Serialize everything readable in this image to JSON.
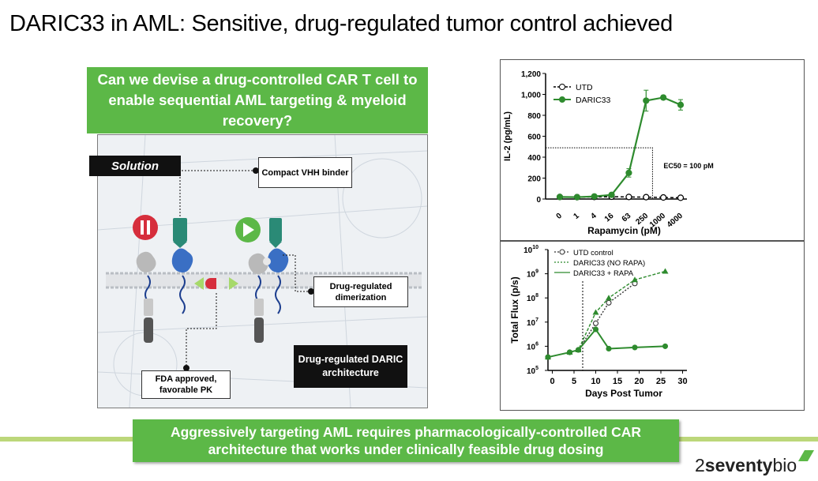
{
  "slide": {
    "title": "DARIC33 in AML: Sensitive, drug-regulated tumor control achieved",
    "question": "Can we devise a drug-controlled CAR T cell to enable sequential AML targeting & myeloid recovery?",
    "solution_label": "Solution",
    "callouts": {
      "vhh": "Compact VHH binder",
      "dimerization": "Drug-regulated dimerization",
      "fda": "FDA approved, favorable PK"
    },
    "architecture_box": "Drug-regulated DARIC architecture",
    "bottom_banner": "Aggressively targeting AML requires pharmacologically-controlled CAR architecture that works under clinically feasible drug dosing",
    "logo": {
      "prefix": "2",
      "bold": "seventy",
      "suffix": "bio"
    },
    "colors": {
      "green": "#5cb847",
      "dark_green": "#2e8b2e",
      "light_green_line": "#bcd77a"
    }
  },
  "chart_data": [
    {
      "type": "line",
      "ylabel": "IL-2 (pg/mL)",
      "xlabel": "Rapamycin (pM)",
      "categories": [
        "0",
        "1",
        "4",
        "16",
        "63",
        "250",
        "1000",
        "4000"
      ],
      "ylim": [
        0,
        1200
      ],
      "yticks": [
        "0",
        "200",
        "400",
        "600",
        "800",
        "1,000",
        "1,200"
      ],
      "series": [
        {
          "name": "UTD",
          "style": "dashed",
          "marker": "open-circle",
          "values": [
            20,
            18,
            20,
            22,
            20,
            18,
            15,
            12
          ]
        },
        {
          "name": "DARIC33",
          "style": "solid",
          "marker": "filled-circle",
          "values": [
            20,
            18,
            25,
            40,
            250,
            940,
            970,
            900
          ],
          "errors": [
            0,
            0,
            0,
            0,
            40,
            100,
            20,
            50
          ]
        }
      ],
      "annotation": "EC50 = 100 pM",
      "ec50_y": 490
    },
    {
      "type": "line",
      "ylabel": "Total Flux (p/s)",
      "xlabel": "Days Post Tumor",
      "x_ticks": [
        0,
        5,
        10,
        15,
        20,
        25,
        30
      ],
      "ylim_log10": [
        5,
        10
      ],
      "vline_day": 7,
      "series": [
        {
          "name": "UTD control",
          "style": "dotted",
          "marker": "open-circle",
          "x": [
            -1,
            4,
            6,
            10,
            13,
            19
          ],
          "log10_y": [
            5.55,
            5.75,
            5.85,
            6.95,
            7.8,
            8.6
          ]
        },
        {
          "name": "DARIC33 (NO RAPA)",
          "style": "dotted",
          "marker": "filled-triangle",
          "x": [
            -1,
            4,
            6,
            10,
            13,
            19,
            26
          ],
          "log10_y": [
            5.55,
            5.75,
            5.85,
            7.4,
            8.0,
            8.75,
            9.1
          ]
        },
        {
          "name": "DARIC33 + RAPA",
          "style": "solid",
          "marker": "filled-circle",
          "x": [
            -1,
            4,
            6,
            10,
            13,
            19,
            26
          ],
          "log10_y": [
            5.55,
            5.75,
            5.85,
            6.7,
            5.9,
            5.95,
            6.0
          ]
        }
      ]
    }
  ]
}
